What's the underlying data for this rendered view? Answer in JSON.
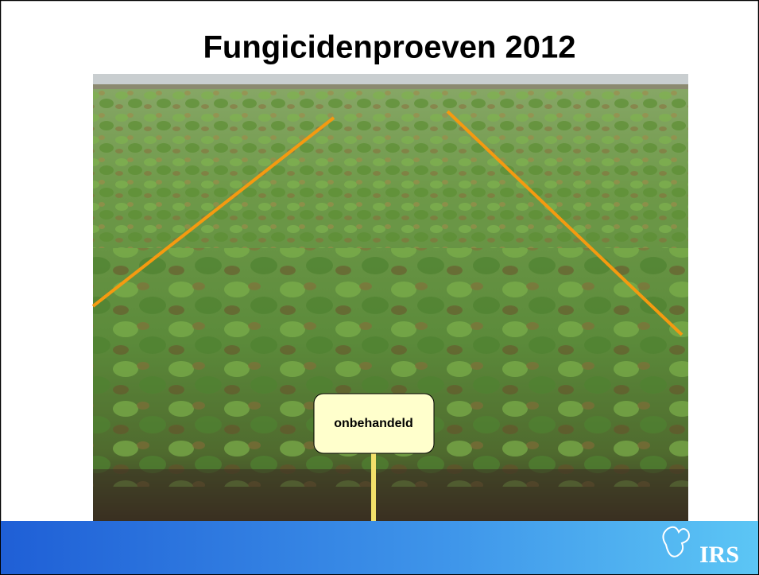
{
  "title": "Fungicidenproeven 2012",
  "photo_label": "onbehandeld",
  "logo": "IRS"
}
